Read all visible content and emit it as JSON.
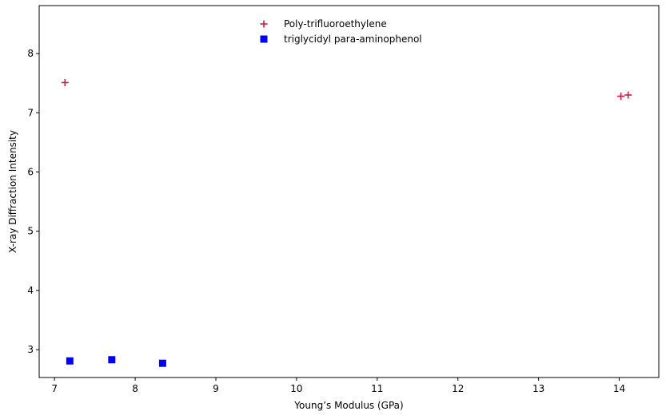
{
  "chart_data": {
    "type": "scatter",
    "title": "",
    "xlabel": "Young’s Modulus (GPa)",
    "ylabel": "X-ray Diffraction Intensity",
    "xlim": [
      6.81,
      14.49
    ],
    "ylim": [
      2.53,
      8.81
    ],
    "xticks": [
      7,
      8,
      9,
      10,
      11,
      12,
      13,
      14
    ],
    "yticks": [
      3,
      4,
      5,
      6,
      7,
      8
    ],
    "grid": false,
    "legend_position": "top-center",
    "series": [
      {
        "name": "Poly-trifluoroethylene",
        "marker": "plus",
        "color": "#dc143c",
        "points": [
          {
            "x": 7.13,
            "y": 7.51
          },
          {
            "x": 14.02,
            "y": 7.28
          },
          {
            "x": 14.11,
            "y": 7.3
          }
        ]
      },
      {
        "name": "triglycidyl para-aminophenol",
        "marker": "square",
        "color": "#0000ff",
        "points": [
          {
            "x": 7.19,
            "y": 2.81
          },
          {
            "x": 7.71,
            "y": 2.83
          },
          {
            "x": 8.34,
            "y": 2.77
          }
        ]
      }
    ]
  }
}
